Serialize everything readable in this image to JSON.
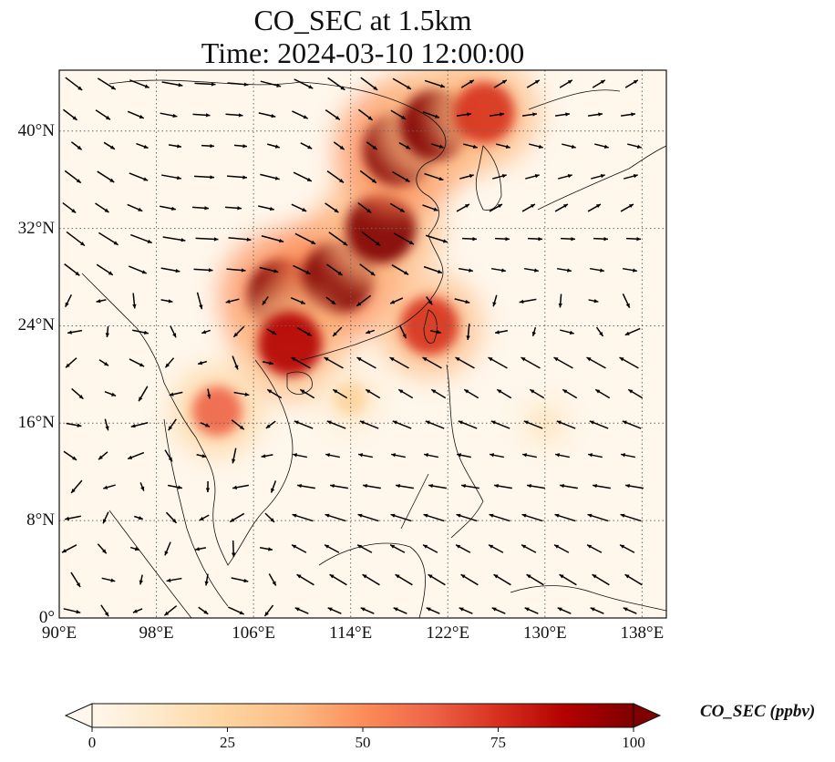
{
  "title_line1": "CO_SEC at 1.5km",
  "title_line2": "Time: 2024-03-10 12:00:00",
  "map": {
    "lon_range": [
      90,
      140
    ],
    "lat_range": [
      0,
      45
    ],
    "lon_ticks": [
      {
        "value": 90,
        "label": "90°E"
      },
      {
        "value": 98,
        "label": "98°E"
      },
      {
        "value": 106,
        "label": "106°E"
      },
      {
        "value": 114,
        "label": "114°E"
      },
      {
        "value": 122,
        "label": "122°E"
      },
      {
        "value": 130,
        "label": "130°E"
      },
      {
        "value": 138,
        "label": "138°E"
      }
    ],
    "lat_ticks": [
      {
        "value": 0,
        "label": "0°"
      },
      {
        "value": 8,
        "label": "8°N"
      },
      {
        "value": 16,
        "label": "16°N"
      },
      {
        "value": 24,
        "label": "24°N"
      },
      {
        "value": 32,
        "label": "32°N"
      },
      {
        "value": 40,
        "label": "40°N"
      }
    ],
    "gridlines": true,
    "colormap": "OrRd",
    "plumes": [
      {
        "lon": 108.5,
        "lat": 26.5,
        "value": 100
      },
      {
        "lon": 113.0,
        "lat": 28.0,
        "value": 100
      },
      {
        "lon": 116.5,
        "lat": 32.0,
        "value": 95
      },
      {
        "lon": 118.0,
        "lat": 38.5,
        "value": 100
      },
      {
        "lon": 121.0,
        "lat": 40.5,
        "value": 95
      },
      {
        "lon": 125.0,
        "lat": 41.5,
        "value": 80
      },
      {
        "lon": 109.0,
        "lat": 22.5,
        "value": 85
      },
      {
        "lon": 103.0,
        "lat": 17.0,
        "value": 60
      },
      {
        "lon": 120.5,
        "lat": 24.0,
        "value": 75
      },
      {
        "lon": 114.0,
        "lat": 18.0,
        "value": 30
      },
      {
        "lon": 130.0,
        "lat": 16.0,
        "value": 15
      }
    ],
    "wind": {
      "arrow_color": "#000000"
    }
  },
  "colorbar": {
    "label": "CO_SEC (ppbv)",
    "min": 0,
    "max": 100,
    "extend": "both",
    "ticks": [
      {
        "value": 0,
        "label": "0"
      },
      {
        "value": 25,
        "label": "25"
      },
      {
        "value": 50,
        "label": "50"
      },
      {
        "value": 75,
        "label": "75"
      },
      {
        "value": 100,
        "label": "100"
      }
    ],
    "colors": [
      "#fff7ec",
      "#fee8c8",
      "#fdd49e",
      "#fdbb84",
      "#fc8d59",
      "#ef6548",
      "#d7301f",
      "#b30000",
      "#7f0000"
    ]
  }
}
